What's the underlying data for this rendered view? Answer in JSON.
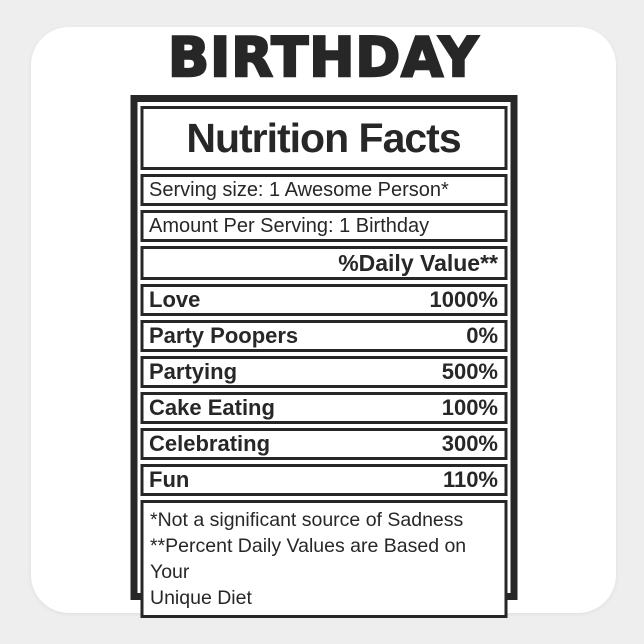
{
  "page": {
    "background_color": "#eeeeee",
    "sticker_color": "#ffffff",
    "ink_color": "#272727"
  },
  "title": "BIRTHDAY",
  "label": {
    "header": "Nutrition Facts",
    "serving_size": "Serving size: 1 Awesome Person*",
    "amount_per_serving": "Amount Per Serving: 1 Birthday",
    "daily_value_header": "%Daily Value**",
    "nutrients": [
      {
        "name": "Love",
        "value": "1000%"
      },
      {
        "name": "Party Poopers",
        "value": "0%"
      },
      {
        "name": "Partying",
        "value": "500%"
      },
      {
        "name": "Cake Eating",
        "value": "100%"
      },
      {
        "name": "Celebrating",
        "value": "300%"
      },
      {
        "name": "Fun",
        "value": "110%"
      }
    ],
    "footnotes": [
      "*Not a significant source of Sadness",
      "**Percent Daily Values are Based on Your",
      "Unique Diet"
    ]
  }
}
